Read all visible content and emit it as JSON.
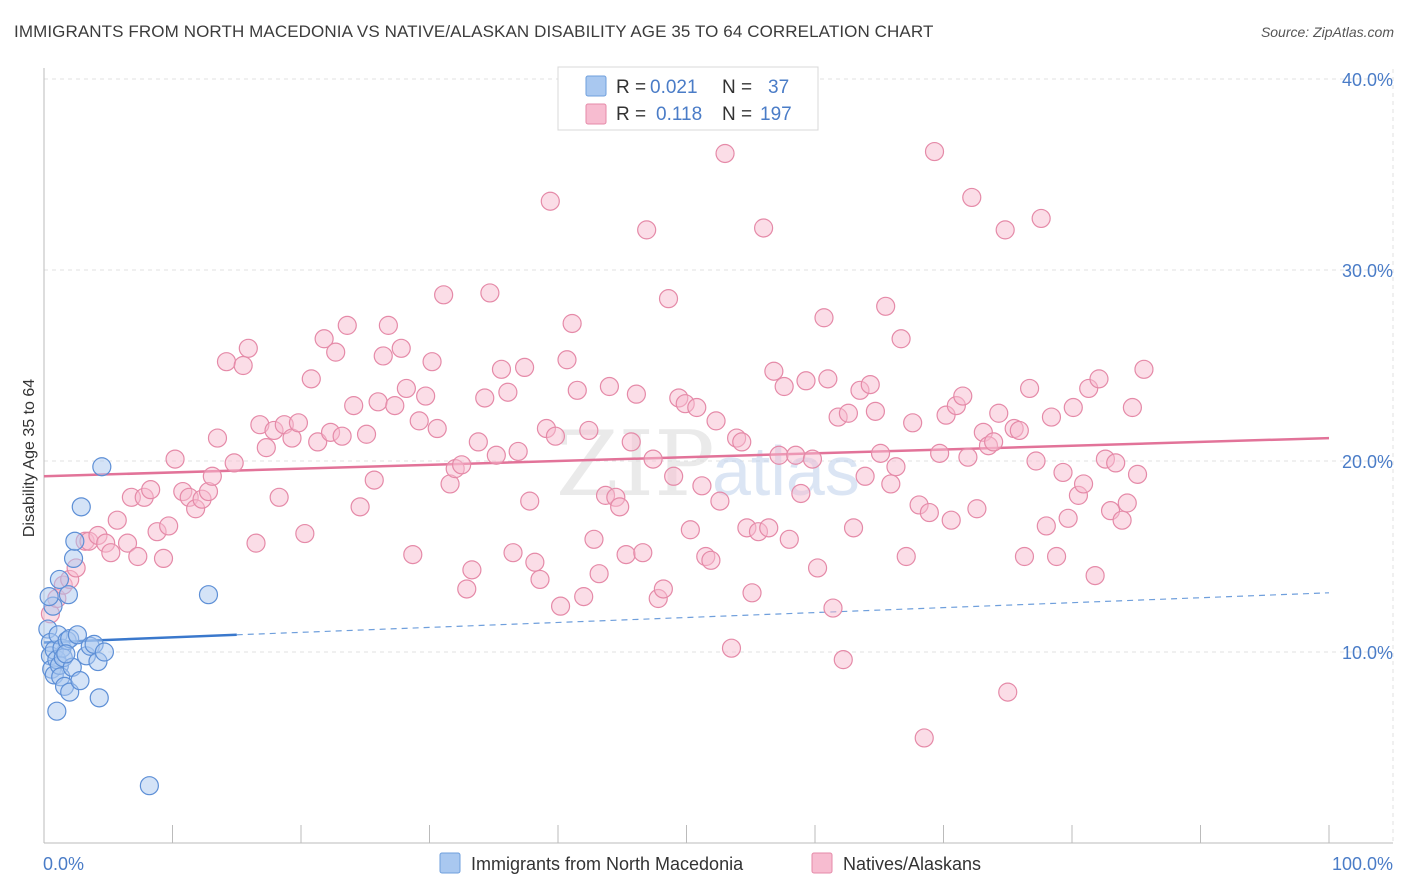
{
  "title": "IMMIGRANTS FROM NORTH MACEDONIA VS NATIVE/ALASKAN DISABILITY AGE 35 TO 64 CORRELATION CHART",
  "source": "Source: ZipAtlas.com",
  "watermark": {
    "zip": "ZIP",
    "atlas": "atlas"
  },
  "legend_top": [
    {
      "r_label": "R =",
      "r_value": "0.021",
      "n_label": "N =",
      "n_value": "37",
      "color": "#a9c8f0",
      "stroke": "#6f9fdc"
    },
    {
      "r_label": "R =",
      "r_value": "0.118",
      "n_label": "N =",
      "n_value": "197",
      "color": "#f7bcd0",
      "stroke": "#e58aa8"
    }
  ],
  "legend_bottom": [
    {
      "label": "Immigrants from North Macedonia",
      "color": "#a9c8f0",
      "stroke": "#6f9fdc"
    },
    {
      "label": "Natives/Alaskans",
      "color": "#f7bcd0",
      "stroke": "#e58aa8"
    }
  ],
  "chart_data": {
    "type": "scatter",
    "title": "IMMIGRANTS FROM NORTH MACEDONIA VS NATIVE/ALASKAN DISABILITY AGE 35 TO 64 CORRELATION CHART",
    "xlabel": "",
    "ylabel": "Disability Age 35 to 64",
    "xlim": [
      0,
      100
    ],
    "ylim": [
      0,
      40
    ],
    "x_tick_labels": [
      "0.0%",
      "100.0%"
    ],
    "y_ticks": [
      10,
      20,
      30,
      40
    ],
    "y_tick_labels": [
      "10.0%",
      "20.0%",
      "30.0%",
      "40.0%"
    ],
    "grid": true,
    "legend_position": "top-center",
    "series": [
      {
        "name": "Immigrants from North Macedonia",
        "color": "#6f9fdc",
        "trend": {
          "x": [
            0,
            15
          ],
          "y": [
            10.5,
            10.9
          ],
          "extended_to": [
            100,
            13.1
          ]
        },
        "points": [
          [
            0.3,
            11.2
          ],
          [
            0.5,
            10.5
          ],
          [
            0.5,
            9.8
          ],
          [
            0.6,
            9.1
          ],
          [
            0.7,
            12.4
          ],
          [
            0.8,
            10.1
          ],
          [
            0.8,
            8.8
          ],
          [
            1.0,
            9.6
          ],
          [
            1.0,
            6.9
          ],
          [
            1.1,
            10.9
          ],
          [
            1.2,
            13.8
          ],
          [
            1.2,
            9.3
          ],
          [
            1.3,
            8.7
          ],
          [
            1.4,
            10.2
          ],
          [
            1.5,
            9.7
          ],
          [
            1.6,
            8.2
          ],
          [
            1.8,
            10.6
          ],
          [
            1.9,
            13.0
          ],
          [
            2.0,
            10.7
          ],
          [
            2.0,
            7.9
          ],
          [
            2.2,
            9.2
          ],
          [
            2.3,
            14.9
          ],
          [
            2.4,
            15.8
          ],
          [
            2.6,
            10.9
          ],
          [
            2.8,
            8.5
          ],
          [
            2.9,
            17.6
          ],
          [
            3.3,
            9.8
          ],
          [
            3.6,
            10.3
          ],
          [
            3.9,
            10.4
          ],
          [
            4.2,
            9.5
          ],
          [
            4.3,
            7.6
          ],
          [
            4.5,
            19.7
          ],
          [
            4.7,
            10.0
          ],
          [
            8.2,
            3.0
          ],
          [
            12.8,
            13.0
          ],
          [
            0.4,
            12.9
          ],
          [
            1.7,
            9.9
          ]
        ]
      },
      {
        "name": "Natives/Alaskans",
        "color": "#e58aa8",
        "trend": {
          "x": [
            0,
            100
          ],
          "y": [
            19.2,
            21.2
          ]
        },
        "points": [
          [
            0.5,
            12.0
          ],
          [
            1.0,
            12.8
          ],
          [
            1.5,
            13.5
          ],
          [
            2.0,
            13.8
          ],
          [
            2.5,
            14.4
          ],
          [
            3.2,
            15.8
          ],
          [
            3.5,
            15.8
          ],
          [
            4.2,
            16.1
          ],
          [
            4.8,
            15.7
          ],
          [
            5.2,
            15.2
          ],
          [
            5.7,
            16.9
          ],
          [
            6.5,
            15.7
          ],
          [
            6.8,
            18.1
          ],
          [
            7.3,
            15.0
          ],
          [
            7.8,
            18.1
          ],
          [
            8.3,
            18.5
          ],
          [
            8.8,
            16.3
          ],
          [
            9.3,
            14.9
          ],
          [
            9.7,
            16.6
          ],
          [
            10.2,
            20.1
          ],
          [
            10.8,
            18.4
          ],
          [
            11.3,
            18.1
          ],
          [
            11.8,
            17.5
          ],
          [
            12.3,
            18.0
          ],
          [
            12.8,
            18.4
          ],
          [
            13.1,
            19.2
          ],
          [
            13.5,
            21.2
          ],
          [
            14.2,
            25.2
          ],
          [
            14.8,
            19.9
          ],
          [
            15.5,
            25.0
          ],
          [
            15.9,
            25.9
          ],
          [
            16.5,
            15.7
          ],
          [
            16.8,
            21.9
          ],
          [
            17.3,
            20.7
          ],
          [
            17.9,
            21.6
          ],
          [
            18.3,
            18.1
          ],
          [
            18.7,
            21.9
          ],
          [
            19.3,
            21.2
          ],
          [
            19.8,
            22.0
          ],
          [
            20.3,
            16.2
          ],
          [
            20.8,
            24.3
          ],
          [
            21.3,
            21.0
          ],
          [
            21.8,
            26.4
          ],
          [
            22.3,
            21.5
          ],
          [
            22.7,
            25.7
          ],
          [
            23.2,
            21.3
          ],
          [
            23.6,
            27.1
          ],
          [
            24.1,
            22.9
          ],
          [
            24.6,
            17.6
          ],
          [
            25.1,
            21.4
          ],
          [
            25.7,
            19.0
          ],
          [
            26.0,
            23.1
          ],
          [
            26.4,
            25.5
          ],
          [
            26.8,
            27.1
          ],
          [
            27.3,
            22.9
          ],
          [
            27.8,
            25.9
          ],
          [
            28.2,
            23.8
          ],
          [
            28.7,
            15.1
          ],
          [
            29.2,
            22.1
          ],
          [
            29.7,
            23.4
          ],
          [
            30.2,
            25.2
          ],
          [
            30.6,
            21.7
          ],
          [
            31.1,
            28.7
          ],
          [
            31.6,
            18.8
          ],
          [
            32.0,
            19.6
          ],
          [
            32.5,
            19.8
          ],
          [
            32.9,
            13.3
          ],
          [
            33.3,
            14.3
          ],
          [
            33.8,
            21.0
          ],
          [
            34.3,
            23.3
          ],
          [
            34.7,
            28.8
          ],
          [
            35.2,
            20.3
          ],
          [
            35.6,
            24.8
          ],
          [
            36.1,
            23.6
          ],
          [
            36.5,
            15.2
          ],
          [
            36.9,
            20.5
          ],
          [
            37.4,
            24.9
          ],
          [
            37.8,
            17.9
          ],
          [
            38.2,
            14.7
          ],
          [
            38.6,
            13.8
          ],
          [
            39.1,
            21.7
          ],
          [
            39.4,
            33.6
          ],
          [
            39.8,
            21.3
          ],
          [
            40.2,
            12.4
          ],
          [
            40.7,
            25.3
          ],
          [
            41.1,
            27.2
          ],
          [
            41.5,
            23.7
          ],
          [
            42.0,
            12.9
          ],
          [
            42.4,
            21.6
          ],
          [
            42.8,
            15.9
          ],
          [
            43.2,
            14.1
          ],
          [
            43.7,
            18.2
          ],
          [
            44.0,
            23.9
          ],
          [
            44.5,
            18.1
          ],
          [
            44.8,
            17.6
          ],
          [
            45.3,
            15.1
          ],
          [
            45.7,
            21.0
          ],
          [
            46.1,
            23.5
          ],
          [
            46.6,
            15.2
          ],
          [
            46.9,
            32.1
          ],
          [
            47.4,
            20.1
          ],
          [
            47.8,
            12.8
          ],
          [
            48.2,
            13.3
          ],
          [
            48.6,
            28.5
          ],
          [
            49.0,
            19.2
          ],
          [
            49.4,
            23.3
          ],
          [
            49.9,
            23.0
          ],
          [
            50.3,
            16.4
          ],
          [
            50.8,
            22.8
          ],
          [
            51.2,
            18.7
          ],
          [
            51.5,
            15.0
          ],
          [
            51.9,
            14.8
          ],
          [
            52.3,
            22.1
          ],
          [
            52.6,
            17.9
          ],
          [
            53.0,
            36.1
          ],
          [
            53.5,
            10.2
          ],
          [
            53.9,
            21.2
          ],
          [
            54.3,
            21.0
          ],
          [
            54.7,
            16.5
          ],
          [
            55.1,
            13.1
          ],
          [
            55.6,
            16.3
          ],
          [
            56.0,
            32.2
          ],
          [
            56.4,
            16.5
          ],
          [
            56.8,
            24.7
          ],
          [
            57.2,
            20.3
          ],
          [
            57.6,
            23.9
          ],
          [
            58.0,
            15.9
          ],
          [
            58.5,
            20.3
          ],
          [
            58.9,
            18.3
          ],
          [
            59.3,
            24.2
          ],
          [
            59.8,
            20.1
          ],
          [
            60.2,
            14.4
          ],
          [
            60.7,
            27.5
          ],
          [
            61.0,
            24.3
          ],
          [
            61.4,
            12.3
          ],
          [
            61.8,
            22.3
          ],
          [
            62.2,
            9.6
          ],
          [
            62.6,
            22.5
          ],
          [
            63.0,
            16.5
          ],
          [
            63.5,
            23.7
          ],
          [
            63.9,
            19.2
          ],
          [
            64.3,
            24.0
          ],
          [
            64.7,
            22.6
          ],
          [
            65.1,
            20.4
          ],
          [
            65.5,
            28.1
          ],
          [
            65.9,
            18.8
          ],
          [
            66.3,
            19.7
          ],
          [
            66.7,
            26.4
          ],
          [
            67.1,
            15.0
          ],
          [
            67.6,
            22.0
          ],
          [
            68.1,
            17.7
          ],
          [
            68.5,
            5.5
          ],
          [
            68.9,
            17.3
          ],
          [
            69.3,
            36.2
          ],
          [
            69.7,
            20.4
          ],
          [
            70.2,
            22.4
          ],
          [
            70.6,
            16.9
          ],
          [
            71.0,
            22.9
          ],
          [
            71.5,
            23.4
          ],
          [
            71.9,
            20.2
          ],
          [
            72.2,
            33.8
          ],
          [
            72.6,
            17.5
          ],
          [
            73.1,
            21.5
          ],
          [
            73.5,
            20.8
          ],
          [
            73.9,
            21.0
          ],
          [
            74.3,
            22.5
          ],
          [
            74.8,
            32.1
          ],
          [
            75.0,
            7.9
          ],
          [
            75.5,
            21.7
          ],
          [
            75.9,
            21.6
          ],
          [
            76.3,
            15.0
          ],
          [
            76.7,
            23.8
          ],
          [
            77.2,
            20.0
          ],
          [
            77.6,
            32.7
          ],
          [
            78.0,
            16.6
          ],
          [
            78.4,
            22.3
          ],
          [
            78.8,
            15.0
          ],
          [
            79.3,
            19.4
          ],
          [
            79.7,
            17.0
          ],
          [
            80.1,
            22.8
          ],
          [
            80.5,
            18.2
          ],
          [
            80.9,
            18.8
          ],
          [
            81.3,
            23.8
          ],
          [
            81.8,
            14.0
          ],
          [
            82.1,
            24.3
          ],
          [
            82.6,
            20.1
          ],
          [
            83.0,
            17.4
          ],
          [
            83.4,
            19.9
          ],
          [
            83.9,
            16.9
          ],
          [
            84.3,
            17.8
          ],
          [
            84.7,
            22.8
          ],
          [
            85.1,
            19.3
          ],
          [
            85.6,
            24.8
          ]
        ]
      }
    ]
  }
}
